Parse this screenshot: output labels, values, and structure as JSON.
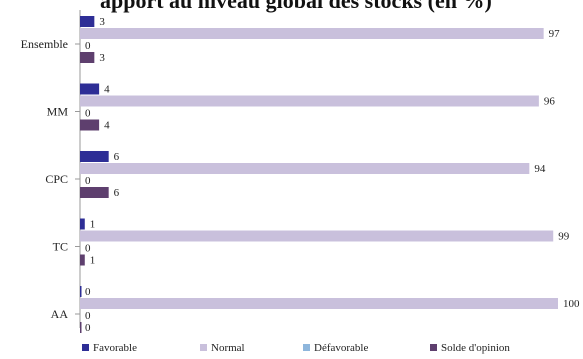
{
  "title_fragment": "apport au niveau global des stocks (en %)",
  "chart_data": {
    "type": "bar",
    "orientation": "horizontal",
    "categories": [
      "Ensemble",
      "MM",
      "CPC",
      "TC",
      "AA"
    ],
    "series": [
      {
        "name": "Favorable",
        "color": "#2e2e96",
        "values": [
          3,
          4,
          6,
          1,
          0
        ]
      },
      {
        "name": "Normal",
        "color": "#c9c0dc",
        "values": [
          97,
          96,
          94,
          99,
          100
        ]
      },
      {
        "name": "Défavorable",
        "color": "#8eb6dc",
        "values": [
          0,
          0,
          0,
          0,
          0
        ]
      },
      {
        "name": "Solde d'opinion",
        "color": "#5e3f6e",
        "values": [
          3,
          4,
          6,
          1,
          0
        ]
      }
    ],
    "xlim": [
      0,
      100
    ],
    "legend_position": "bottom",
    "grid": false
  }
}
